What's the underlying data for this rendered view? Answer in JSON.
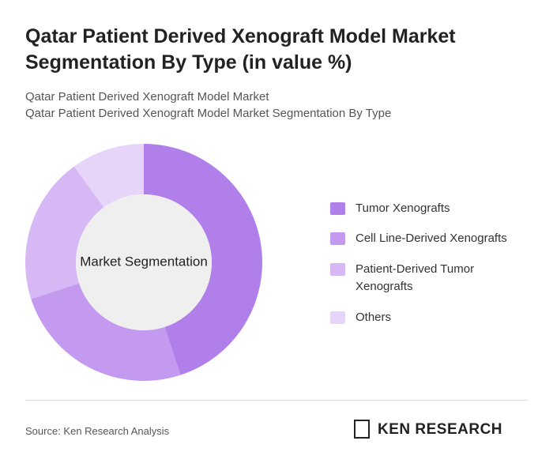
{
  "chart_data": {
    "type": "donut",
    "title": "Qatar Patient Derived Xenograft Model Market Segmentation By Type (in value %)",
    "subtitle": [
      "Qatar Patient Derived Xenograft Model Market",
      "Qatar Patient Derived Xenograft Model Market Segmentation By Type"
    ],
    "center_label": "Market Segmentation",
    "categories": [
      "Tumor Xenografts",
      "Cell Line-Derived Xenografts",
      "Patient-Derived Tumor Xenografts",
      "Others"
    ],
    "values": [
      45,
      25,
      20,
      10
    ],
    "colors": [
      "#b07fea",
      "#c49af0",
      "#d6b8f5",
      "#e6d5f9"
    ]
  },
  "footer": {
    "source": "Source: Ken Research Analysis",
    "brand": "KEN RESEARCH"
  }
}
